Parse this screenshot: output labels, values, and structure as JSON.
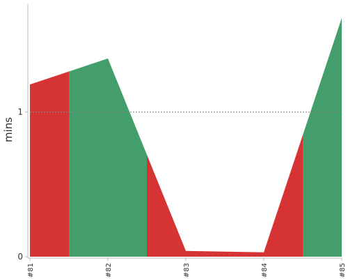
{
  "chart_data": {
    "type": "area",
    "ylabel": "mins",
    "categories": [
      "#81",
      "#82",
      "#83",
      "#84",
      "#85"
    ],
    "values": [
      1.19,
      1.37,
      0.04,
      0.03,
      1.65
    ],
    "status": [
      "failure",
      "success",
      "failure",
      "failure",
      "success"
    ],
    "ylim": [
      0,
      1.75
    ],
    "y_ticks": [
      0,
      1
    ],
    "y_tick_labels": [
      "0",
      "1"
    ],
    "reference_line": 1,
    "grid": false
  },
  "colors": {
    "success": "#449E6B",
    "failure": "#D63434",
    "axis": "#bbbbbb",
    "reference_line": "#888888"
  }
}
